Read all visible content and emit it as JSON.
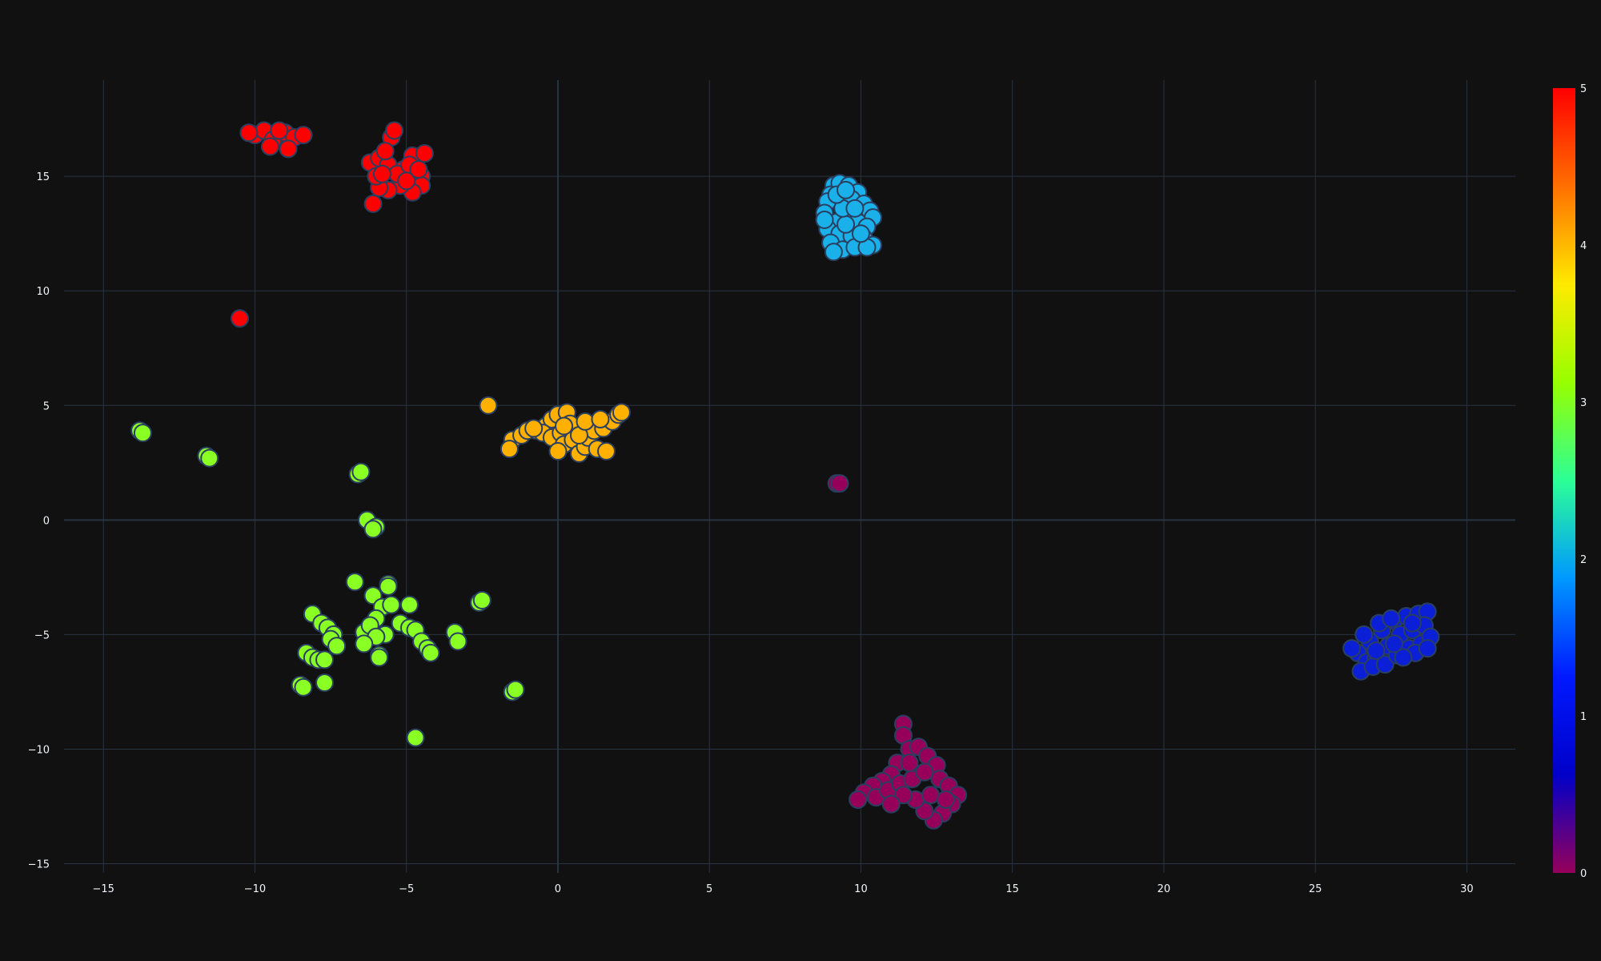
{
  "chart_data": {
    "type": "scatter",
    "title": "",
    "xlabel": "",
    "ylabel": "",
    "xlim": [
      -16.3,
      31.6
    ],
    "ylim": [
      -15.4,
      19.2
    ],
    "x_ticks": [
      -15,
      -10,
      -5,
      0,
      5,
      10,
      15,
      20,
      25,
      30
    ],
    "x_tick_labels": [
      "−15",
      "−10",
      "−5",
      "0",
      "5",
      "10",
      "15",
      "20",
      "25",
      "30"
    ],
    "y_ticks": [
      -15,
      -10,
      -5,
      0,
      5,
      10,
      15
    ],
    "y_tick_labels": [
      "−15",
      "−10",
      "−5",
      "0",
      "5",
      "10",
      "15"
    ],
    "grid": true,
    "background": "#111111",
    "grid_color": "#283442",
    "marker_outline": "#2a3f5f",
    "colorscale": "rainbow",
    "colorbar": {
      "min": 0,
      "max": 5,
      "ticks": [
        "0",
        "1",
        "2",
        "3",
        "4",
        "5"
      ],
      "stops": [
        "#96005a",
        "#0000c8",
        "#0019ff",
        "#0098ff",
        "#2cff96",
        "#97ff00",
        "#ffea00",
        "#ff6f00",
        "#ff0000"
      ]
    },
    "series": [
      {
        "color_value": 5,
        "color": "#ff0000",
        "points": [
          [
            -10.0,
            16.8
          ],
          [
            -9.7,
            17.0
          ],
          [
            -9.4,
            16.6
          ],
          [
            -9.0,
            16.9
          ],
          [
            -8.7,
            16.7
          ],
          [
            -8.9,
            16.2
          ],
          [
            -8.4,
            16.8
          ],
          [
            -9.2,
            17.0
          ],
          [
            -10.2,
            16.9
          ],
          [
            -9.5,
            16.3
          ],
          [
            -6.2,
            15.6
          ],
          [
            -5.9,
            15.8
          ],
          [
            -5.5,
            16.7
          ],
          [
            -5.4,
            17.0
          ],
          [
            -5.6,
            15.5
          ],
          [
            -5.1,
            15.3
          ],
          [
            -4.8,
            15.9
          ],
          [
            -4.4,
            16.0
          ],
          [
            -4.5,
            15.0
          ],
          [
            -4.5,
            14.6
          ],
          [
            -4.8,
            14.3
          ],
          [
            -5.2,
            14.6
          ],
          [
            -5.6,
            14.4
          ],
          [
            -5.9,
            14.5
          ],
          [
            -6.0,
            15.0
          ],
          [
            -6.1,
            13.8
          ],
          [
            -5.3,
            15.1
          ],
          [
            -4.9,
            15.5
          ],
          [
            -5.7,
            16.1
          ],
          [
            -5.0,
            14.8
          ],
          [
            -5.8,
            15.1
          ],
          [
            -4.6,
            15.3
          ],
          [
            -10.5,
            8.8
          ]
        ]
      },
      {
        "color_value": 4,
        "color": "#ffb000",
        "points": [
          [
            -2.3,
            5.0
          ],
          [
            -1.5,
            3.5
          ],
          [
            -1.6,
            3.1
          ],
          [
            -1.2,
            3.7
          ],
          [
            -1.0,
            3.9
          ],
          [
            -0.7,
            3.9
          ],
          [
            -0.4,
            4.1
          ],
          [
            -0.2,
            4.4
          ],
          [
            0.0,
            4.6
          ],
          [
            0.3,
            4.7
          ],
          [
            -0.5,
            3.8
          ],
          [
            -0.2,
            3.6
          ],
          [
            0.1,
            3.8
          ],
          [
            0.2,
            3.3
          ],
          [
            0.0,
            3.0
          ],
          [
            0.5,
            3.5
          ],
          [
            0.7,
            2.9
          ],
          [
            0.9,
            3.2
          ],
          [
            1.0,
            3.6
          ],
          [
            1.3,
            3.1
          ],
          [
            1.2,
            3.9
          ],
          [
            1.5,
            4.0
          ],
          [
            1.6,
            3.0
          ],
          [
            1.8,
            4.3
          ],
          [
            2.0,
            4.6
          ],
          [
            2.1,
            4.7
          ],
          [
            0.4,
            4.2
          ],
          [
            0.7,
            3.7
          ],
          [
            0.9,
            4.3
          ],
          [
            1.4,
            4.4
          ],
          [
            0.2,
            4.1
          ],
          [
            -0.8,
            4.0
          ]
        ]
      },
      {
        "color_value": 2,
        "color": "#1ab0ea",
        "points": [
          [
            9.1,
            14.6
          ],
          [
            9.3,
            14.7
          ],
          [
            9.6,
            14.6
          ],
          [
            9.9,
            14.3
          ],
          [
            9.0,
            14.2
          ],
          [
            8.9,
            13.9
          ],
          [
            9.7,
            14.0
          ],
          [
            10.1,
            13.8
          ],
          [
            10.3,
            13.5
          ],
          [
            10.4,
            13.2
          ],
          [
            8.8,
            13.4
          ],
          [
            9.2,
            13.0
          ],
          [
            9.6,
            13.2
          ],
          [
            9.9,
            13.0
          ],
          [
            10.2,
            12.8
          ],
          [
            8.9,
            12.7
          ],
          [
            9.3,
            12.5
          ],
          [
            9.7,
            12.4
          ],
          [
            10.1,
            12.3
          ],
          [
            10.4,
            12.0
          ],
          [
            9.0,
            12.1
          ],
          [
            9.4,
            11.8
          ],
          [
            9.8,
            11.9
          ],
          [
            9.1,
            11.7
          ],
          [
            10.2,
            11.9
          ],
          [
            9.5,
            12.9
          ],
          [
            9.4,
            13.6
          ],
          [
            9.2,
            14.2
          ],
          [
            9.8,
            13.6
          ],
          [
            10.0,
            12.5
          ],
          [
            8.8,
            13.1
          ],
          [
            9.5,
            14.4
          ]
        ]
      },
      {
        "color_value": 3,
        "color": "#8aff24",
        "points": [
          [
            -13.8,
            3.9
          ],
          [
            -13.7,
            3.8
          ],
          [
            -11.6,
            2.8
          ],
          [
            -11.5,
            2.7
          ],
          [
            -6.6,
            2.0
          ],
          [
            -6.5,
            2.1
          ],
          [
            -6.3,
            0.0
          ],
          [
            -6.0,
            -0.3
          ],
          [
            -6.1,
            -0.4
          ],
          [
            -6.7,
            -2.7
          ],
          [
            -5.6,
            -2.8
          ],
          [
            -5.6,
            -2.9
          ],
          [
            -6.1,
            -3.3
          ],
          [
            -5.8,
            -3.8
          ],
          [
            -5.5,
            -3.7
          ],
          [
            -4.9,
            -3.7
          ],
          [
            -2.6,
            -3.6
          ],
          [
            -2.5,
            -3.5
          ],
          [
            -8.1,
            -4.1
          ],
          [
            -7.8,
            -4.5
          ],
          [
            -7.6,
            -4.7
          ],
          [
            -6.0,
            -4.3
          ],
          [
            -5.2,
            -4.5
          ],
          [
            -4.9,
            -4.7
          ],
          [
            -4.7,
            -4.8
          ],
          [
            -6.4,
            -4.9
          ],
          [
            -6.2,
            -4.6
          ],
          [
            -5.7,
            -5.0
          ],
          [
            -6.0,
            -5.1
          ],
          [
            -7.4,
            -5.0
          ],
          [
            -7.5,
            -5.2
          ],
          [
            -7.3,
            -5.5
          ],
          [
            -6.4,
            -5.4
          ],
          [
            -4.5,
            -5.3
          ],
          [
            -4.3,
            -5.6
          ],
          [
            -4.2,
            -5.8
          ],
          [
            -3.4,
            -4.9
          ],
          [
            -3.3,
            -5.3
          ],
          [
            -8.3,
            -5.8
          ],
          [
            -8.1,
            -6.0
          ],
          [
            -7.9,
            -6.1
          ],
          [
            -7.7,
            -6.1
          ],
          [
            -5.9,
            -5.9
          ],
          [
            -5.9,
            -6.0
          ],
          [
            -8.5,
            -7.2
          ],
          [
            -8.4,
            -7.3
          ],
          [
            -7.7,
            -7.1
          ],
          [
            -1.5,
            -7.5
          ],
          [
            -1.4,
            -7.4
          ],
          [
            -4.7,
            -9.5
          ]
        ]
      },
      {
        "color_value": 1,
        "color": "#0a1fd6",
        "points": [
          [
            26.4,
            -5.8
          ],
          [
            26.8,
            -5.3
          ],
          [
            27.2,
            -4.8
          ],
          [
            27.6,
            -4.4
          ],
          [
            28.0,
            -4.2
          ],
          [
            28.4,
            -4.1
          ],
          [
            28.7,
            -4.0
          ],
          [
            26.7,
            -6.2
          ],
          [
            27.0,
            -6.0
          ],
          [
            27.4,
            -5.5
          ],
          [
            27.8,
            -5.0
          ],
          [
            28.2,
            -4.8
          ],
          [
            28.6,
            -4.6
          ],
          [
            26.5,
            -6.6
          ],
          [
            26.9,
            -6.4
          ],
          [
            27.3,
            -6.3
          ],
          [
            27.7,
            -5.9
          ],
          [
            28.1,
            -5.6
          ],
          [
            28.5,
            -5.4
          ],
          [
            28.8,
            -5.1
          ],
          [
            26.2,
            -5.6
          ],
          [
            27.1,
            -4.5
          ],
          [
            27.5,
            -4.3
          ],
          [
            28.3,
            -5.8
          ],
          [
            26.6,
            -5.0
          ],
          [
            27.9,
            -6.0
          ],
          [
            28.7,
            -5.6
          ],
          [
            27.0,
            -5.7
          ],
          [
            27.6,
            -5.4
          ],
          [
            28.2,
            -4.5
          ]
        ]
      },
      {
        "color_value": 0,
        "color": "#96005a",
        "points": [
          [
            9.2,
            1.6
          ],
          [
            9.3,
            1.6
          ],
          [
            11.4,
            -8.9
          ],
          [
            11.4,
            -9.4
          ],
          [
            11.6,
            -10.0
          ],
          [
            11.9,
            -9.9
          ],
          [
            12.2,
            -10.3
          ],
          [
            12.5,
            -10.7
          ],
          [
            11.2,
            -10.6
          ],
          [
            11.0,
            -11.1
          ],
          [
            10.7,
            -11.4
          ],
          [
            10.4,
            -11.6
          ],
          [
            10.1,
            -11.9
          ],
          [
            9.9,
            -12.2
          ],
          [
            10.5,
            -12.1
          ],
          [
            10.9,
            -11.8
          ],
          [
            11.3,
            -11.5
          ],
          [
            11.7,
            -11.3
          ],
          [
            12.1,
            -11.0
          ],
          [
            12.6,
            -11.3
          ],
          [
            12.9,
            -11.6
          ],
          [
            13.2,
            -12.0
          ],
          [
            13.0,
            -12.4
          ],
          [
            12.7,
            -12.8
          ],
          [
            12.4,
            -13.1
          ],
          [
            12.1,
            -12.7
          ],
          [
            11.8,
            -12.2
          ],
          [
            11.4,
            -12.0
          ],
          [
            11.0,
            -12.4
          ],
          [
            12.3,
            -12.0
          ],
          [
            12.8,
            -12.2
          ],
          [
            11.6,
            -10.6
          ]
        ]
      }
    ]
  }
}
